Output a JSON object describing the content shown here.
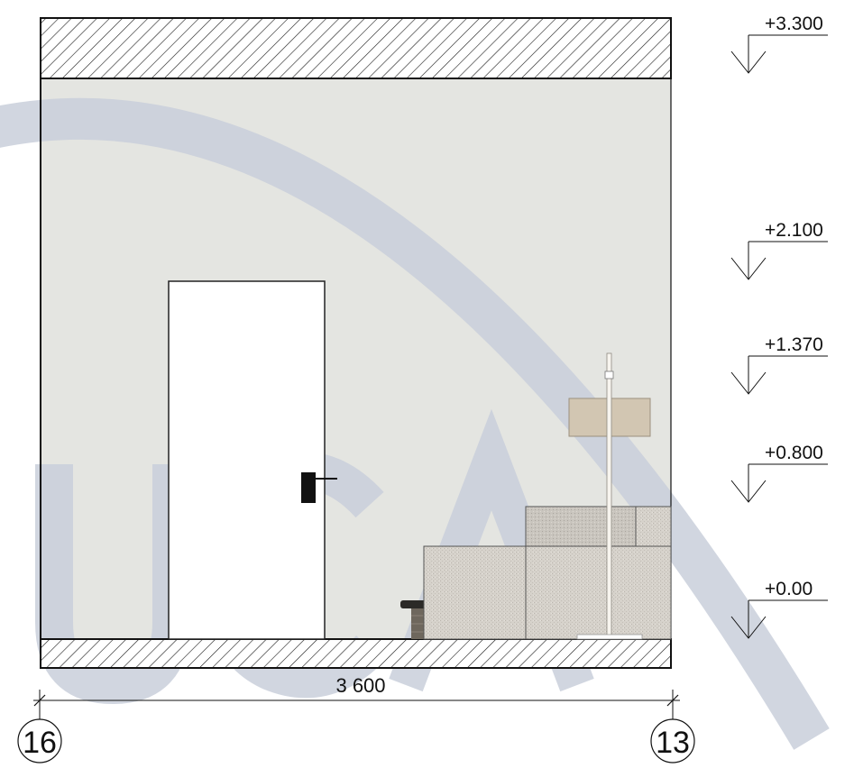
{
  "levels": [
    {
      "label": "+3.300"
    },
    {
      "label": "+2.100"
    },
    {
      "label": "+1.370"
    },
    {
      "label": "+0.800"
    },
    {
      "label": "+0.00"
    }
  ],
  "dimension": {
    "label": "3 600"
  },
  "axes": {
    "left": "16",
    "right": "13"
  },
  "watermark": {
    "text": "UCA"
  },
  "colors": {
    "wall": "#e4e5e1",
    "hatch": "#1a1a1a",
    "door": "#ffffff",
    "watermark": "#c9cfda",
    "cabinet": "#d9d5ce",
    "lamp_shade": "#d2c6b2"
  }
}
